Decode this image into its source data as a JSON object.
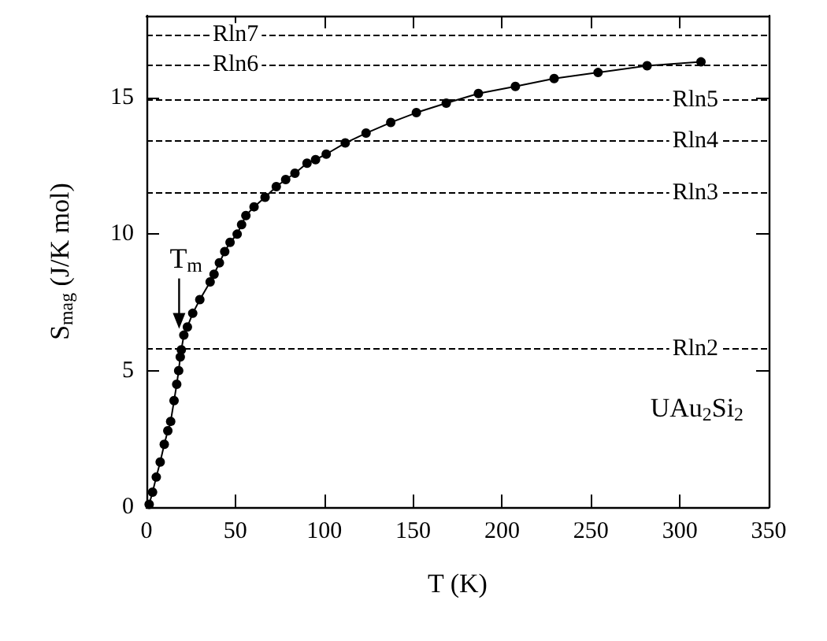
{
  "chart_data": {
    "type": "line",
    "xlabel": "T (K)",
    "ylabel": "S$_{mag}$ (J/K mol)",
    "xlim": [
      0,
      350
    ],
    "xticks": [
      0,
      50,
      100,
      150,
      200,
      250,
      300,
      350
    ],
    "ylim": [
      0,
      18
    ],
    "yticks": [
      0,
      5,
      10,
      15
    ],
    "marker": "circle",
    "line_style": "solid",
    "grid": false,
    "series": [
      {
        "color": "#000000",
        "x": [
          1.5,
          3.4,
          5.5,
          7.7,
          10,
          12,
          13.6,
          15.5,
          17,
          18.1,
          19,
          19.6,
          21,
          23,
          26,
          30,
          35.8,
          38,
          41,
          44,
          47,
          51,
          53.5,
          55.9,
          60.5,
          66.7,
          73.0,
          78.3,
          83.5,
          90.3,
          95.1,
          101.1,
          111.8,
          123.5,
          137.4,
          151.8,
          168.6,
          186.7,
          207.5,
          229.3,
          254.0,
          281.6,
          311.9
        ],
        "values": [
          0.1,
          0.55,
          1.1,
          1.65,
          2.3,
          2.8,
          3.14,
          3.9,
          4.5,
          5.0,
          5.5,
          5.76,
          6.3,
          6.6,
          7.1,
          7.6,
          8.25,
          8.53,
          8.95,
          9.36,
          9.7,
          10.0,
          10.35,
          10.68,
          11.0,
          11.35,
          11.74,
          12.0,
          12.23,
          12.6,
          12.73,
          12.93,
          13.34,
          13.7,
          14.09,
          14.45,
          14.8,
          15.15,
          15.41,
          15.7,
          15.92,
          16.17,
          16.31
        ]
      }
    ],
    "ref_lines": [
      {
        "axis": "y",
        "value": 5.8,
        "label": "Rln2",
        "line_style": "dashed",
        "color": "#000000"
      },
      {
        "axis": "y",
        "value": 11.5,
        "label": "Rln3",
        "line_style": "dashed",
        "color": "#000000"
      },
      {
        "axis": "y",
        "value": 13.4,
        "label": "Rln4",
        "line_style": "dashed",
        "color": "#000000"
      },
      {
        "axis": "y",
        "value": 14.9,
        "label": "Rln5",
        "line_style": "dashed",
        "color": "#000000"
      },
      {
        "axis": "y",
        "value": 16.2,
        "label": "Rln6",
        "line_style": "dashed",
        "color": "#000000"
      },
      {
        "axis": "y",
        "value": 17.3,
        "label": "Rln7",
        "line_style": "dashed",
        "color": "#000000"
      }
    ],
    "annotations": [
      {
        "text": "T$_{m}$",
        "x": 21,
        "y": 6.3
      },
      "UAu$_{2}$Si$_{2}$"
    ]
  }
}
